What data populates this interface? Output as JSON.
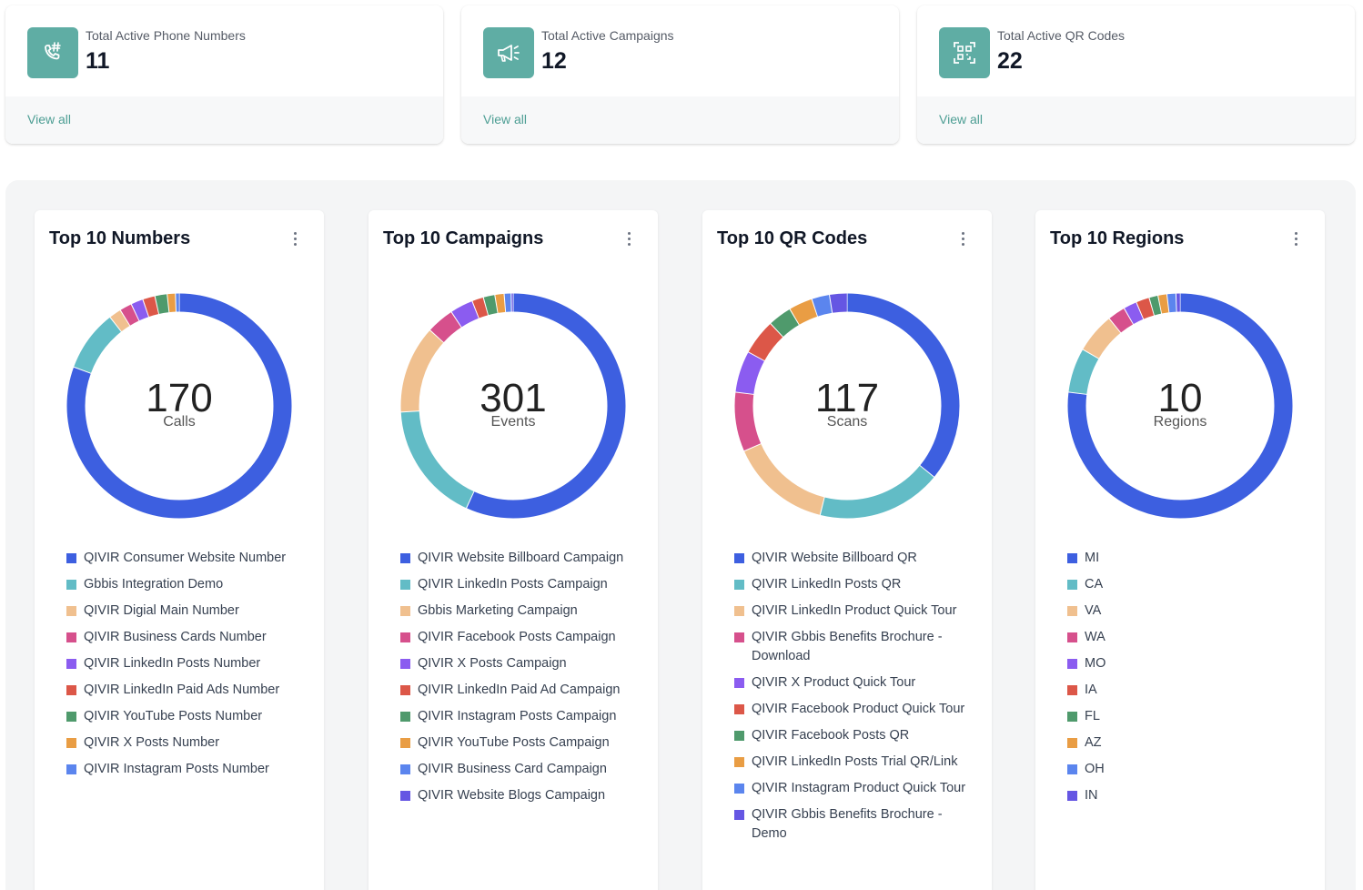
{
  "stats": [
    {
      "label": "Total Active Phone Numbers",
      "value": "11",
      "link": "View all",
      "icon": "phone-hash-icon"
    },
    {
      "label": "Total Active Campaigns",
      "value": "12",
      "link": "View all",
      "icon": "megaphone-icon"
    },
    {
      "label": "Total Active QR Codes",
      "value": "22",
      "link": "View all",
      "icon": "qr-code-icon"
    }
  ],
  "colors": {
    "blue": "#3d5fe0",
    "teal": "#62bcc6",
    "peach": "#f0c08f",
    "pink": "#d6508c",
    "purple": "#8b5cf0",
    "red": "#dc5748",
    "green": "#4f9a6c",
    "orange": "#e99d44",
    "lightblue": "#5b85ee",
    "indigo": "#6556e3"
  },
  "chart_data": [
    {
      "type": "pie",
      "title": "Top 10 Numbers",
      "total": "170",
      "unit": "Calls",
      "categories": [
        "QIVIR Consumer Website Number",
        "Gbbis Integration Demo",
        "QIVIR Digial Main Number",
        "QIVIR Business Cards Number",
        "QIVIR LinkedIn Posts Number",
        "QIVIR LinkedIn Paid Ads Number",
        "QIVIR YouTube Posts Number",
        "QIVIR X Posts Number",
        "QIVIR Instagram Posts Number"
      ],
      "values": [
        137,
        15,
        3,
        3,
        3,
        3,
        3,
        2,
        1
      ],
      "colors": [
        "#3d5fe0",
        "#62bcc6",
        "#f0c08f",
        "#d6508c",
        "#8b5cf0",
        "#dc5748",
        "#4f9a6c",
        "#e99d44",
        "#5b85ee"
      ]
    },
    {
      "type": "pie",
      "title": "Top 10 Campaigns",
      "total": "301",
      "unit": "Events",
      "categories": [
        "QIVIR Website Billboard Campaign",
        "QIVIR LinkedIn Posts Campaign",
        "Gbbis Marketing Campaign",
        "QIVIR Facebook Posts Campaign",
        "QIVIR X Posts Campaign",
        "QIVIR LinkedIn Paid Ad Campaign",
        "QIVIR Instagram Posts Campaign",
        "QIVIR YouTube Posts Campaign",
        "QIVIR Business Card Campaign",
        "QIVIR Website Blogs Campaign"
      ],
      "values": [
        171,
        52,
        38,
        12,
        10,
        5,
        5,
        4,
        3,
        1
      ],
      "colors": [
        "#3d5fe0",
        "#62bcc6",
        "#f0c08f",
        "#d6508c",
        "#8b5cf0",
        "#dc5748",
        "#4f9a6c",
        "#e99d44",
        "#5b85ee",
        "#6556e3"
      ]
    },
    {
      "type": "pie",
      "title": "Top 10 QR Codes",
      "total": "117",
      "unit": "Scans",
      "categories": [
        "QIVIR Website Billboard QR",
        "QIVIR LinkedIn Posts QR",
        "QIVIR LinkedIn Product Quick Tour",
        "QIVIR Gbbis Benefits Brochure - Download",
        "QIVIR X Product Quick Tour",
        "QIVIR Facebook Product Quick Tour",
        "QIVIR Facebook Posts QR",
        "QIVIR LinkedIn Posts Trial QR/Link",
        "QIVIR Instagram Product Quick Tour",
        "QIVIR Gbbis Benefits Brochure - Demo"
      ],
      "values": [
        42,
        21,
        17,
        10,
        7,
        6,
        4,
        4,
        3,
        3
      ],
      "colors": [
        "#3d5fe0",
        "#62bcc6",
        "#f0c08f",
        "#d6508c",
        "#8b5cf0",
        "#dc5748",
        "#4f9a6c",
        "#e99d44",
        "#5b85ee",
        "#6556e3"
      ]
    },
    {
      "type": "pie",
      "title": "Top 10 Regions",
      "total": "10",
      "unit": "Regions",
      "categories": [
        "MI",
        "CA",
        "VA",
        "WA",
        "MO",
        "IA",
        "FL",
        "AZ",
        "OH",
        "IN"
      ],
      "values": [
        120,
        10,
        9,
        4,
        3,
        3,
        2,
        2,
        2,
        1
      ],
      "colors": [
        "#3d5fe0",
        "#62bcc6",
        "#f0c08f",
        "#d6508c",
        "#8b5cf0",
        "#dc5748",
        "#4f9a6c",
        "#e99d44",
        "#5b85ee",
        "#6556e3"
      ]
    }
  ]
}
